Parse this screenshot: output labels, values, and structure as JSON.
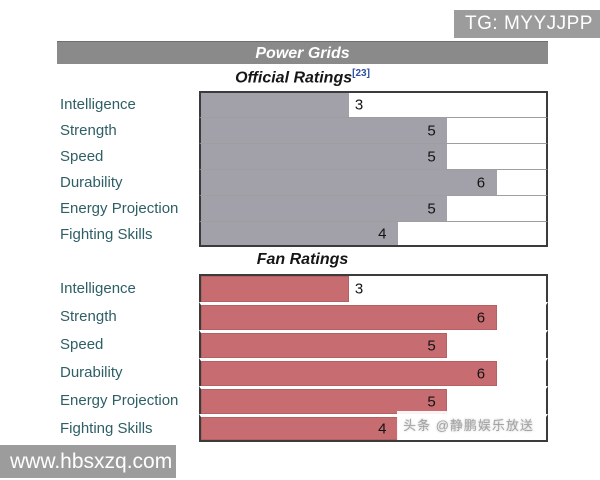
{
  "watermarks": {
    "tg": "TG: MYYJJPP",
    "site": "www.hbsxzq.com",
    "toutiao": "头条 @静鹏娱乐放送"
  },
  "table": {
    "title": "Power Grids"
  },
  "chart_data": [
    {
      "type": "bar",
      "title": "Official Ratings",
      "citation": "[23]",
      "categories": [
        "Intelligence",
        "Strength",
        "Speed",
        "Durability",
        "Energy Projection",
        "Fighting Skills"
      ],
      "values": [
        3,
        5,
        5,
        6,
        5,
        4
      ],
      "xlim": [
        0,
        7
      ],
      "bar_color": "#a2a0a8",
      "orientation": "horizontal",
      "value_labels": true,
      "style_key": "official"
    },
    {
      "type": "bar",
      "title": "Fan Ratings",
      "citation": "",
      "categories": [
        "Intelligence",
        "Strength",
        "Speed",
        "Durability",
        "Energy Projection",
        "Fighting Skills"
      ],
      "values": [
        3,
        6,
        5,
        6,
        5,
        4
      ],
      "xlim": [
        0,
        7
      ],
      "bar_color": "#c76c70",
      "orientation": "horizontal",
      "value_labels": true,
      "style_key": "fan"
    }
  ]
}
